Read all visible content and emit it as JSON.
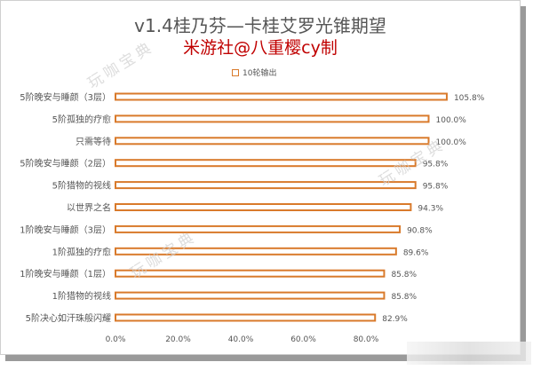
{
  "title": "v1.4桂乃芬—卡桂艾罗光锥期望",
  "subtitle": "米游社@八重樱cy制",
  "watermarks": [
    "玩咖宝典",
    "玩咖宝典",
    "玩咖宝典"
  ],
  "chart_data": {
    "type": "bar",
    "orientation": "horizontal",
    "categories": [
      "5阶晚安与睡颜（3层）",
      "5阶孤独的疗愈",
      "只需等待",
      "5阶晚安与睡颜（2层）",
      "5阶猎物的视线",
      "以世界之名",
      "1阶晚安与睡颜（3层）",
      "1阶孤独的疗愈",
      "1阶晚安与睡颜（1层）",
      "1阶猎物的视线",
      "5阶决心如汗珠般闪耀"
    ],
    "series": [
      {
        "name": "10轮输出",
        "values": [
          105.8,
          100.0,
          100.0,
          95.8,
          95.8,
          94.3,
          90.8,
          89.6,
          85.8,
          85.8,
          82.9
        ],
        "labels": [
          "105.8%",
          "100.0%",
          "100.0%",
          "95.8%",
          "95.8%",
          "94.3%",
          "90.8%",
          "89.6%",
          "85.8%",
          "85.8%",
          "82.9%"
        ]
      }
    ],
    "xlim": [
      0,
      120
    ],
    "x_ticks": [
      "0.0%",
      "20.0%",
      "40.0%",
      "60.0%",
      "80.0%"
    ],
    "x_tick_values": [
      0,
      20,
      40,
      60,
      80
    ],
    "legend_position": "top",
    "grid": false,
    "colors": {
      "bar_fill": "#ffffff",
      "bar_stroke": "#d97a2b",
      "text": "#555555",
      "title": "#555555",
      "subtitle": "#c00000"
    }
  }
}
